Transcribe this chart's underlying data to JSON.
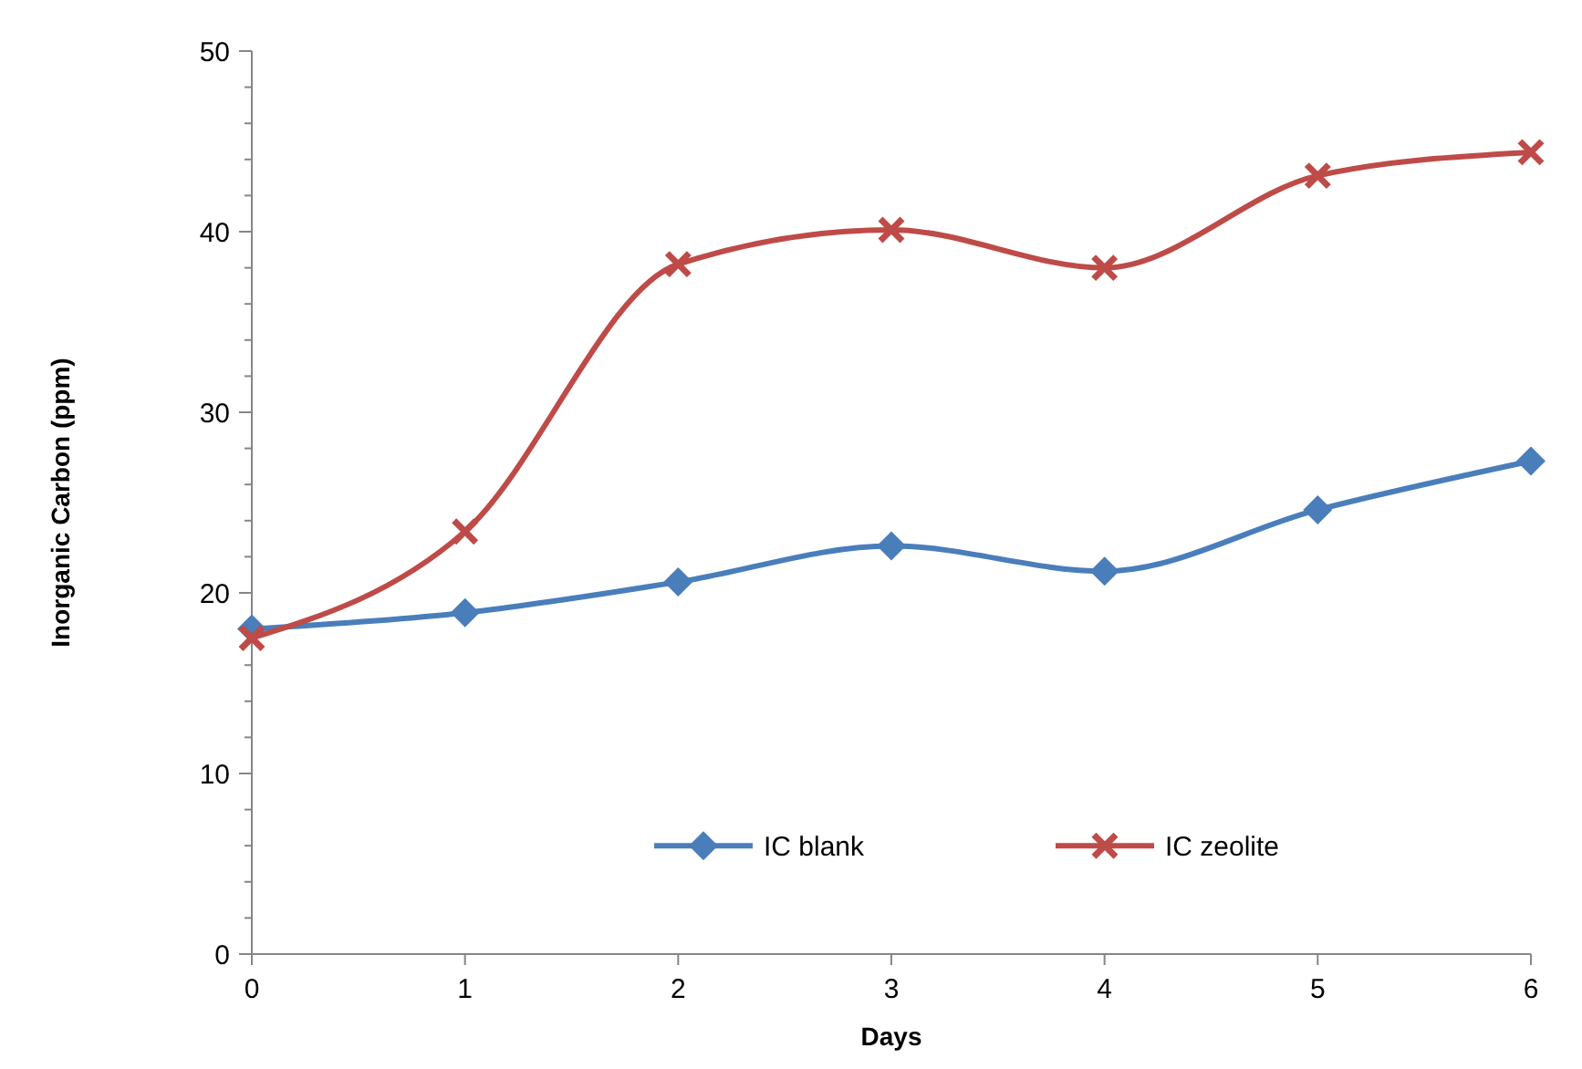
{
  "chart_data": {
    "type": "line",
    "xlabel": "Days",
    "ylabel": "Inorganic Carbon (ppm)",
    "x": [
      0,
      1,
      2,
      3,
      4,
      5,
      6
    ],
    "xlim": [
      0,
      6
    ],
    "xticks": [
      0,
      1,
      2,
      3,
      4,
      5,
      6
    ],
    "ylim": [
      0,
      50
    ],
    "yticks": [
      0,
      {
        "value": 2,
        "label": null
      },
      {
        "value": 4,
        "label": null
      },
      {
        "value": 6,
        "label": null
      },
      {
        "value": 8,
        "label": null
      },
      10,
      {
        "value": 12,
        "label": null
      },
      {
        "value": 14,
        "label": null
      },
      {
        "value": 16,
        "label": null
      },
      {
        "value": 18,
        "label": null
      },
      20,
      {
        "value": 22,
        "label": null
      },
      {
        "value": 24,
        "label": null
      },
      {
        "value": 26,
        "label": null
      },
      {
        "value": 28,
        "label": null
      },
      30,
      {
        "value": 32,
        "label": null
      },
      {
        "value": 34,
        "label": null
      },
      {
        "value": 36,
        "label": null
      },
      {
        "value": 38,
        "label": null
      },
      40,
      {
        "value": 42,
        "label": null
      },
      {
        "value": 44,
        "label": null
      },
      {
        "value": 46,
        "label": null
      },
      {
        "value": 48,
        "label": null
      },
      50
    ],
    "grid": false,
    "legend": "bottom",
    "line_style": "solid",
    "series": [
      {
        "name": "IC blank",
        "color": "#4a7ebb",
        "marker": "diamond",
        "values": [
          18,
          18.9,
          20.6,
          22.6,
          21.2,
          24.6,
          27.3
        ]
      },
      {
        "name": "IC zeolite",
        "color": "#be4b48",
        "marker": "cross",
        "values": [
          17.5,
          23.4,
          38.2,
          40.1,
          38,
          43.1,
          44.4
        ]
      }
    ]
  }
}
